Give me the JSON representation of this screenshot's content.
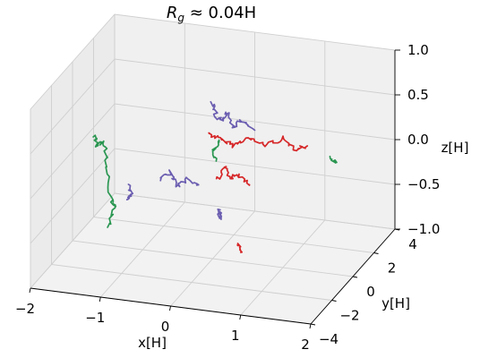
{
  "chart_data": {
    "type": "line3d",
    "title": "R_g ≈ 0.04H",
    "title_parts": {
      "r": "R",
      "sub": "g",
      "rest": " ≈ 0.04H"
    },
    "xlabel": "x[H]",
    "ylabel": "y[H]",
    "zlabel": "z[H]",
    "xlim": [
      -2,
      2
    ],
    "ylim": [
      -4,
      4
    ],
    "zlim": [
      -1,
      1
    ],
    "x_ticks": [
      {
        "v": -2,
        "label": "−2"
      },
      {
        "v": -1,
        "label": "−1"
      },
      {
        "v": 0,
        "label": "0"
      },
      {
        "v": 1,
        "label": "1"
      },
      {
        "v": 2,
        "label": "2"
      }
    ],
    "y_ticks": [
      {
        "v": -4,
        "label": "−4"
      },
      {
        "v": -2,
        "label": "−2"
      },
      {
        "v": 0,
        "label": "0"
      },
      {
        "v": 2,
        "label": "2"
      },
      {
        "v": 4,
        "label": "4"
      }
    ],
    "z_ticks": [
      {
        "v": -1,
        "label": "−1.0"
      },
      {
        "v": -0.5,
        "label": "−0.5"
      },
      {
        "v": 0,
        "label": "0.0"
      },
      {
        "v": 0.5,
        "label": "0.5"
      },
      {
        "v": 1,
        "label": "1.0"
      }
    ],
    "grid": true,
    "series": [
      {
        "color": "#d62728",
        "paths": [
          [
            [
              -0.35,
              2.0,
              0.1
            ],
            [
              -0.2,
              2.0,
              0.05
            ],
            [
              0.0,
              2.0,
              0.0
            ],
            [
              0.2,
              2.0,
              0.1
            ],
            [
              0.45,
              2.0,
              0.05
            ],
            [
              0.7,
              2.0,
              0.15
            ],
            [
              0.9,
              2.0,
              0.05
            ],
            [
              1.05,
              2.0,
              0.1
            ]
          ],
          [
            [
              0.3,
              -1.5,
              0.1
            ],
            [
              0.4,
              -1.5,
              0.25
            ],
            [
              0.5,
              -1.5,
              0.15
            ],
            [
              0.6,
              -1.5,
              0.2
            ],
            [
              0.75,
              -1.5,
              0.1
            ]
          ],
          [
            [
              0.95,
              -4.0,
              -0.2
            ],
            [
              1.0,
              -4.0,
              -0.3
            ]
          ]
        ]
      },
      {
        "color": "#6a5db0",
        "paths": [
          [
            [
              -0.3,
              2.0,
              0.45
            ],
            [
              -0.25,
              2.0,
              0.3
            ],
            [
              -0.15,
              2.0,
              0.25
            ],
            [
              -0.1,
              2.0,
              0.35
            ],
            [
              0.0,
              2.0,
              0.2
            ],
            [
              0.1,
              2.0,
              0.3
            ],
            [
              0.3,
              2.0,
              0.2
            ]
          ],
          [
            [
              0.1,
              0.0,
              -0.45
            ],
            [
              0.1,
              0.0,
              -0.5
            ],
            [
              0.12,
              0.0,
              -0.55
            ]
          ],
          [
            [
              -0.45,
              -2.0,
              0.1
            ],
            [
              -0.3,
              -2.0,
              0.2
            ],
            [
              -0.2,
              -2.0,
              0.05
            ],
            [
              -0.05,
              -2.0,
              0.15
            ],
            [
              0.1,
              -2.0,
              0.1
            ]
          ],
          [
            [
              -1.35,
              1.0,
              -0.45
            ],
            [
              -1.3,
              1.0,
              -0.55
            ],
            [
              -1.35,
              1.0,
              -0.6
            ]
          ]
        ]
      },
      {
        "color": "#2a9651",
        "paths": [
          [
            [
              -1.7,
              0.0,
              0.2
            ],
            [
              -1.65,
              0.0,
              0.1
            ],
            [
              -1.55,
              0.0,
              0.15
            ],
            [
              -1.5,
              0.0,
              -0.1
            ],
            [
              -1.45,
              0.0,
              -0.5
            ],
            [
              -1.4,
              0.0,
              -0.55
            ],
            [
              -1.5,
              0.0,
              -0.8
            ]
          ],
          [
            [
              -0.2,
              2.0,
              0.05
            ],
            [
              -0.3,
              2.0,
              -0.1
            ],
            [
              -0.25,
              2.0,
              -0.2
            ]
          ],
          [
            [
              1.4,
              2.0,
              0.0
            ],
            [
              1.45,
              2.0,
              -0.05
            ]
          ]
        ]
      }
    ]
  }
}
